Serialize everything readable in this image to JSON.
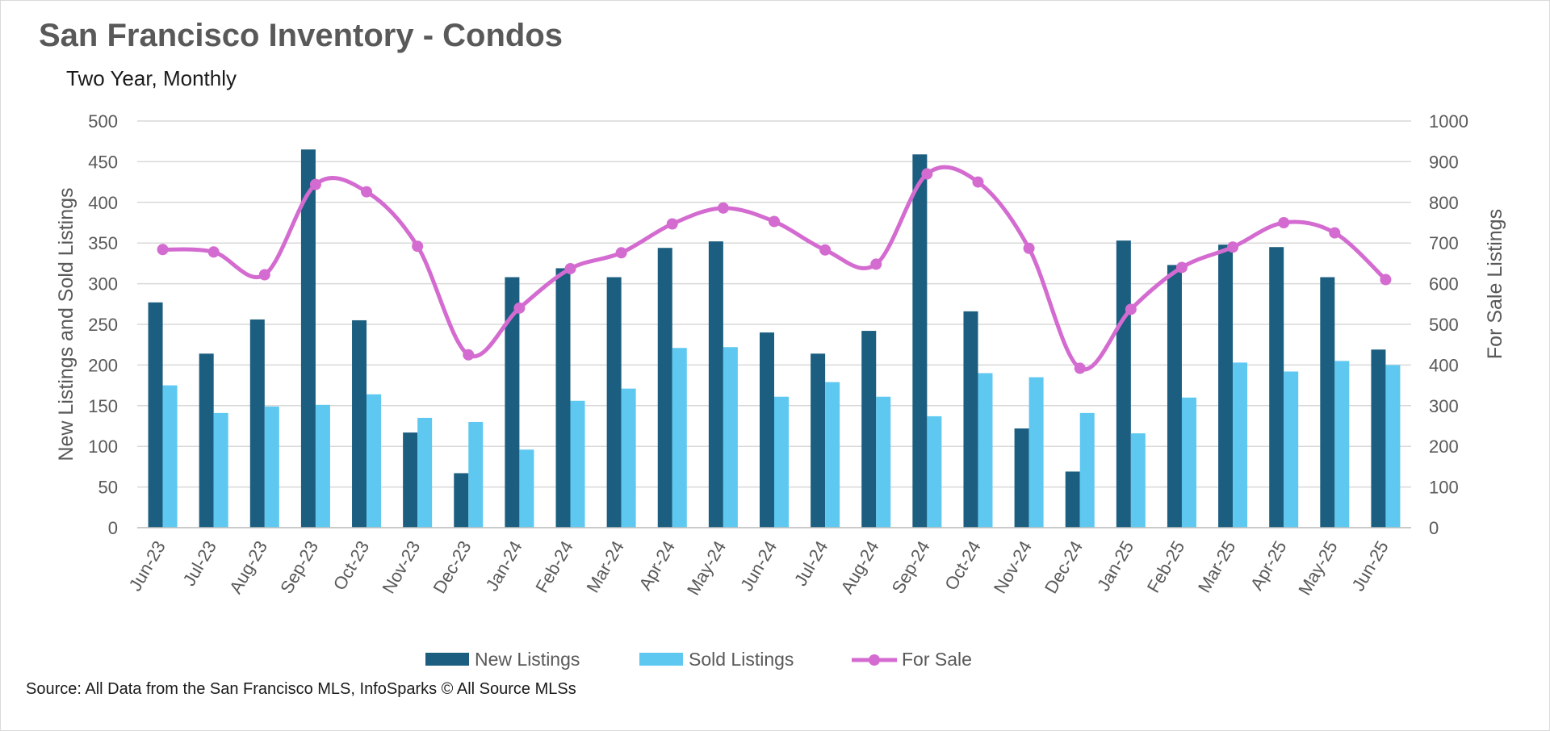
{
  "title": "San Francisco Inventory - Condos",
  "subtitle": "Two Year, Monthly",
  "source": "Source: All Data from the San Francisco MLS, InfoSparks © All Source MLSs",
  "colors": {
    "new_listings": "#1b5e7f",
    "sold_listings": "#5ec8f0",
    "for_sale": "#d46bd0",
    "grid": "#d9d9d9",
    "axis_text": "#595959"
  },
  "chart_data": {
    "type": "bar",
    "categories": [
      "Jun-23",
      "Jul-23",
      "Aug-23",
      "Sep-23",
      "Oct-23",
      "Nov-23",
      "Dec-23",
      "Jan-24",
      "Feb-24",
      "Mar-24",
      "Apr-24",
      "May-24",
      "Jun-24",
      "Jul-24",
      "Aug-24",
      "Sep-24",
      "Oct-24",
      "Nov-24",
      "Dec-24",
      "Jan-25",
      "Feb-25",
      "Mar-25",
      "Apr-25",
      "May-25",
      "Jun-25"
    ],
    "series": [
      {
        "name": "New Listings",
        "type": "bar",
        "axis": "left",
        "values": [
          277,
          214,
          256,
          465,
          255,
          117,
          67,
          308,
          319,
          308,
          344,
          352,
          240,
          214,
          242,
          459,
          266,
          122,
          69,
          353,
          323,
          348,
          345,
          308,
          219
        ]
      },
      {
        "name": "Sold Listings",
        "type": "bar",
        "axis": "left",
        "values": [
          175,
          141,
          149,
          151,
          164,
          135,
          130,
          96,
          156,
          171,
          221,
          222,
          161,
          179,
          161,
          137,
          190,
          185,
          141,
          116,
          160,
          203,
          192,
          205,
          200
        ]
      },
      {
        "name": "For Sale",
        "type": "line",
        "axis": "right",
        "values": [
          684,
          678,
          622,
          844,
          826,
          692,
          425,
          540,
          637,
          676,
          747,
          786,
          753,
          683,
          648,
          870,
          850,
          687,
          392,
          537,
          640,
          690,
          750,
          725,
          610
        ]
      }
    ],
    "ylabel": "New Listings and Sold Listings",
    "y2label": "For Sale Listings",
    "ylim": [
      0,
      500
    ],
    "y2lim": [
      0,
      1000
    ],
    "yticks": [
      0,
      50,
      100,
      150,
      200,
      250,
      300,
      350,
      400,
      450,
      500
    ],
    "y2ticks": [
      0,
      100,
      200,
      300,
      400,
      500,
      600,
      700,
      800,
      900,
      1000
    ],
    "grid": true,
    "legend": "bottom"
  }
}
